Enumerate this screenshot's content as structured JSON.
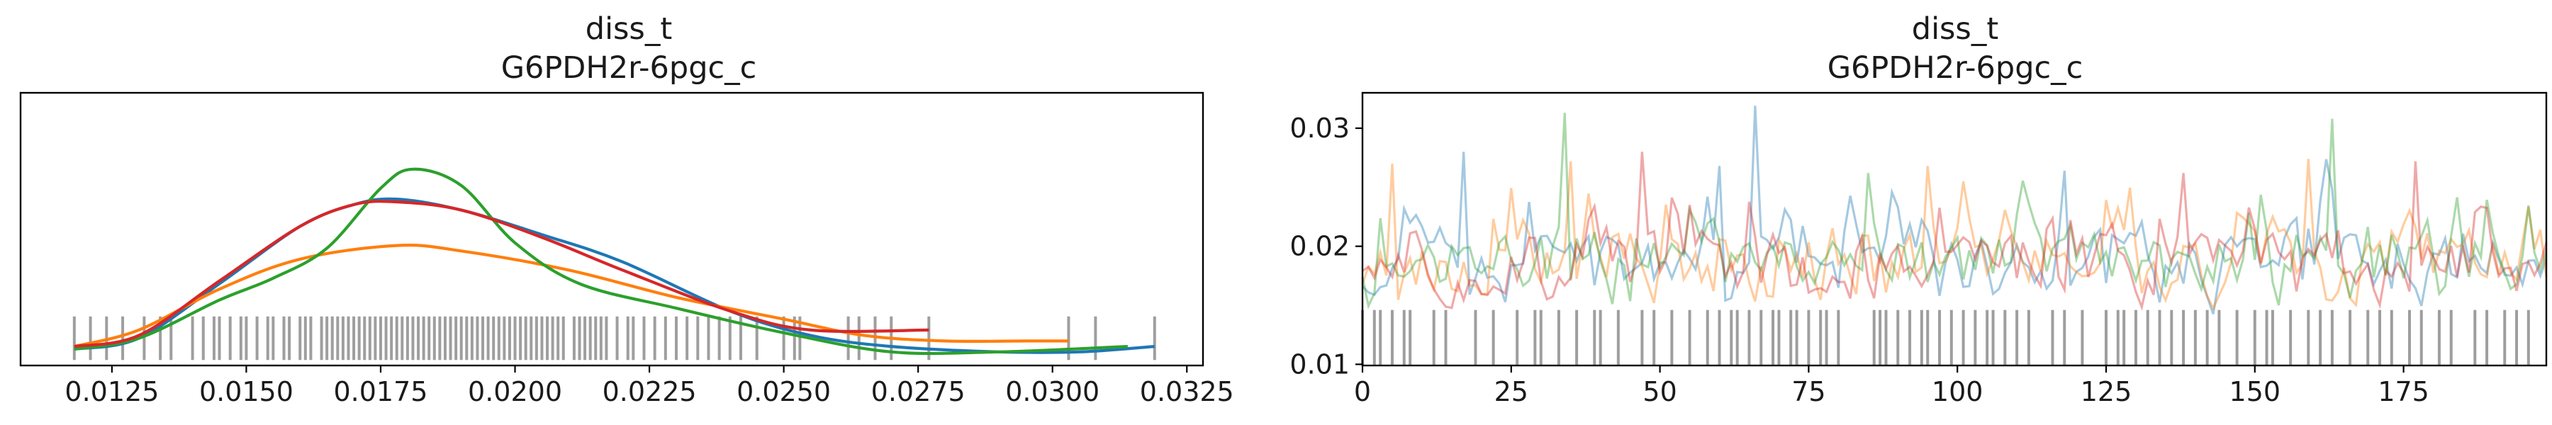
{
  "chart_data": [
    {
      "type": "kde",
      "title": "diss_t",
      "subtitle": "G6PDH2r-6pgc_c",
      "xlabel": "",
      "ylabel": "",
      "xlim": [
        0.0108,
        0.0328
      ],
      "ylim": [
        0,
        1.0
      ],
      "x_ticks": [
        0.0125,
        0.015,
        0.0175,
        0.02,
        0.0225,
        0.025,
        0.0275,
        0.03,
        0.0325
      ],
      "x_tick_labels": [
        "0.0125",
        "0.0150",
        "0.0175",
        "0.0200",
        "0.0225",
        "0.0250",
        "0.0275",
        "0.0300",
        "0.0325"
      ],
      "grid": false,
      "colors": {
        "chain0": "#1f77b4",
        "chain1": "#ff7f0e",
        "chain2": "#2ca02c",
        "chain3": "#d62728",
        "rug": "#000000"
      },
      "series": [
        {
          "color": "#1f77b4",
          "points": [
            [
              0.0118,
              0.06
            ],
            [
              0.013,
              0.1
            ],
            [
              0.0145,
              0.3
            ],
            [
              0.016,
              0.51
            ],
            [
              0.017,
              0.59
            ],
            [
              0.0178,
              0.61
            ],
            [
              0.019,
              0.57
            ],
            [
              0.0205,
              0.48
            ],
            [
              0.022,
              0.38
            ],
            [
              0.024,
              0.2
            ],
            [
              0.0255,
              0.11
            ],
            [
              0.027,
              0.07
            ],
            [
              0.029,
              0.05
            ],
            [
              0.0305,
              0.05
            ],
            [
              0.0319,
              0.07
            ]
          ]
        },
        {
          "color": "#ff7f0e",
          "points": [
            [
              0.0118,
              0.07
            ],
            [
              0.013,
              0.13
            ],
            [
              0.0145,
              0.28
            ],
            [
              0.016,
              0.39
            ],
            [
              0.0178,
              0.44
            ],
            [
              0.019,
              0.42
            ],
            [
              0.021,
              0.35
            ],
            [
              0.023,
              0.25
            ],
            [
              0.025,
              0.17
            ],
            [
              0.0265,
              0.11
            ],
            [
              0.028,
              0.09
            ],
            [
              0.0295,
              0.09
            ],
            [
              0.0303,
              0.09
            ]
          ]
        },
        {
          "color": "#2ca02c",
          "points": [
            [
              0.0118,
              0.06
            ],
            [
              0.013,
              0.1
            ],
            [
              0.0145,
              0.24
            ],
            [
              0.0155,
              0.32
            ],
            [
              0.0165,
              0.43
            ],
            [
              0.0175,
              0.65
            ],
            [
              0.0181,
              0.72
            ],
            [
              0.019,
              0.66
            ],
            [
              0.02,
              0.45
            ],
            [
              0.0212,
              0.3
            ],
            [
              0.023,
              0.21
            ],
            [
              0.025,
              0.12
            ],
            [
              0.027,
              0.05
            ],
            [
              0.029,
              0.05
            ],
            [
              0.0314,
              0.07
            ]
          ]
        },
        {
          "color": "#d62728",
          "points": [
            [
              0.0118,
              0.07
            ],
            [
              0.013,
              0.11
            ],
            [
              0.0145,
              0.31
            ],
            [
              0.016,
              0.51
            ],
            [
              0.017,
              0.59
            ],
            [
              0.0178,
              0.6
            ],
            [
              0.019,
              0.57
            ],
            [
              0.0205,
              0.47
            ],
            [
              0.022,
              0.35
            ],
            [
              0.024,
              0.2
            ],
            [
              0.0255,
              0.13
            ],
            [
              0.0277,
              0.13
            ]
          ]
        }
      ],
      "rug_top": 0.18,
      "rug_bottom": 0.02,
      "rug_values": [
        0.0118,
        0.0121,
        0.0124,
        0.0127,
        0.0131,
        0.0134,
        0.0136,
        0.014,
        0.0142,
        0.0144,
        0.0145,
        0.0147,
        0.0149,
        0.015,
        0.0152,
        0.0154,
        0.0155,
        0.0157,
        0.0158,
        0.016,
        0.0161,
        0.0162,
        0.0164,
        0.0165,
        0.0166,
        0.0167,
        0.0168,
        0.0169,
        0.017,
        0.0171,
        0.0172,
        0.0173,
        0.0174,
        0.0175,
        0.0176,
        0.0177,
        0.0178,
        0.0179,
        0.018,
        0.0181,
        0.0182,
        0.0183,
        0.0184,
        0.0185,
        0.0186,
        0.0187,
        0.0188,
        0.0189,
        0.019,
        0.0191,
        0.0192,
        0.0193,
        0.0194,
        0.0195,
        0.0196,
        0.0197,
        0.0198,
        0.0199,
        0.02,
        0.0201,
        0.0202,
        0.0203,
        0.0204,
        0.0205,
        0.0206,
        0.0207,
        0.0208,
        0.0209,
        0.0211,
        0.0212,
        0.0213,
        0.0214,
        0.0215,
        0.0216,
        0.0217,
        0.0219,
        0.0221,
        0.0222,
        0.0224,
        0.0226,
        0.0228,
        0.023,
        0.0232,
        0.0234,
        0.0236,
        0.0238,
        0.024,
        0.0242,
        0.0245,
        0.025,
        0.0252,
        0.0253,
        0.0262,
        0.0264,
        0.0267,
        0.027,
        0.0277,
        0.0303,
        0.0308,
        0.0319
      ]
    },
    {
      "type": "line",
      "title": "diss_t",
      "subtitle": "G6PDH2r-6pgc_c",
      "xlabel": "",
      "ylabel": "",
      "xlim": [
        0,
        199
      ],
      "ylim": [
        0.0099,
        0.033
      ],
      "x_ticks": [
        0,
        25,
        50,
        75,
        100,
        125,
        150,
        175
      ],
      "x_tick_labels": [
        "0",
        "25",
        "50",
        "75",
        "100",
        "125",
        "150",
        "175"
      ],
      "y_ticks": [
        0.01,
        0.02,
        0.03
      ],
      "y_tick_labels": [
        "0.01",
        "0.02",
        "0.03"
      ],
      "grid": false,
      "n_draws": 200,
      "series": [
        {
          "color": "#1f77b4",
          "seed": 11,
          "spikes": [
            [
              66,
              0.0319
            ],
            [
              17,
              0.028
            ],
            [
              60,
              0.0268
            ],
            [
              118,
              0.0264
            ]
          ]
        },
        {
          "color": "#ff7f0e",
          "seed": 23,
          "spikes": [
            [
              5,
              0.027
            ],
            [
              35,
              0.0272
            ],
            [
              95,
              0.0268
            ],
            [
              159,
              0.0274
            ]
          ]
        },
        {
          "color": "#2ca02c",
          "seed": 37,
          "spikes": [
            [
              34,
              0.0313
            ],
            [
              163,
              0.0308
            ],
            [
              85,
              0.0262
            ]
          ]
        },
        {
          "color": "#d62728",
          "seed": 51,
          "spikes": [
            [
              47,
              0.028
            ],
            [
              177,
              0.0272
            ],
            [
              138,
              0.0262
            ]
          ]
        }
      ],
      "divergence_level": 0.0146,
      "divergence_draws": [
        0,
        2,
        3,
        5,
        7,
        8,
        12,
        14,
        19,
        22,
        26,
        29,
        30,
        33,
        36,
        39,
        40,
        43,
        47,
        49,
        52,
        55,
        58,
        60,
        62,
        63,
        65,
        67,
        69,
        70,
        72,
        73,
        75,
        77,
        78,
        80,
        86,
        87,
        88,
        90,
        92,
        94,
        95,
        97,
        99,
        101,
        103,
        105,
        106,
        108,
        110,
        112,
        116,
        118,
        121,
        125,
        127,
        128,
        130,
        132,
        134,
        136,
        138,
        140,
        142,
        144,
        147,
        150,
        152,
        153,
        156,
        159,
        161,
        163,
        166,
        169,
        171,
        173,
        176,
        178,
        181,
        183,
        187,
        189,
        192,
        194,
        196
      ]
    }
  ]
}
